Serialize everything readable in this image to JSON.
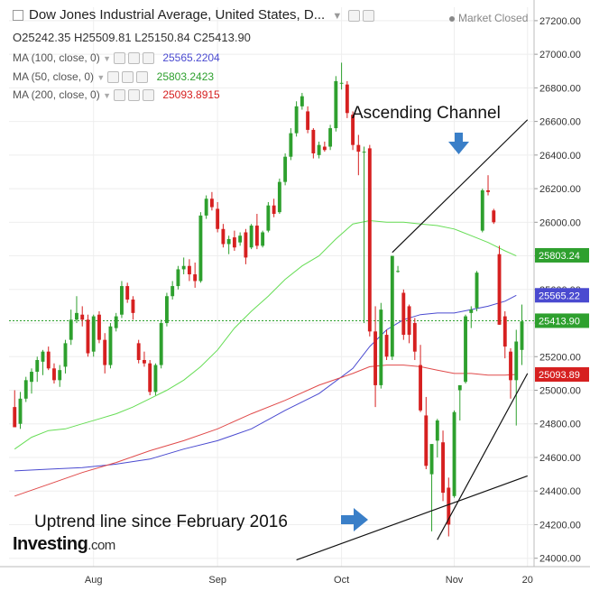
{
  "header": {
    "title": "Dow Jones Industrial Average, United States, D...",
    "status": "Market Closed",
    "open": "O25242.35",
    "high": "H25509.81",
    "low": "L25150.84",
    "close": "C25413.90",
    "ma100_label": "MA (100, close, 0)",
    "ma100_value": "25565.2204",
    "ma50_label": "MA (50, close, 0)",
    "ma50_value": "25803.2423",
    "ma200_label": "MA (200, close, 0)",
    "ma200_value": "25093.8915"
  },
  "annotations": {
    "channel": "Ascending Channel",
    "uptrend": "Uptrend line since February 2016"
  },
  "logo": {
    "main": "Investing",
    "suffix": ".com"
  },
  "colors": {
    "up": "#2ea02e",
    "down": "#d62020",
    "ma50": "#66dd55",
    "ma100": "#4a4ad0",
    "ma200": "#e04a4a",
    "arrow": "#3a7fc8"
  },
  "chart_data": {
    "type": "candlestick",
    "x_labels": [
      "Aug",
      "Sep",
      "Oct",
      "Nov",
      "20"
    ],
    "y_ticks": [
      "27200.00",
      "27000.00",
      "26800.00",
      "26600.00",
      "26400.00",
      "26200.00",
      "26000.00",
      "25800.00",
      "25600.00",
      "25400.00",
      "25200.00",
      "25000.00",
      "24800.00",
      "24600.00",
      "24400.00",
      "24200.00",
      "24000.00"
    ],
    "ylim": [
      23950,
      27280
    ],
    "price_labels": [
      {
        "value": 25803.24,
        "text": "25803.24",
        "color": "#2ea02e"
      },
      {
        "value": 25565.22,
        "text": "25565.22",
        "color": "#4a4ad0"
      },
      {
        "value": 25413.9,
        "text": "25413.90",
        "color": "#2ea02e"
      },
      {
        "value": 25093.89,
        "text": "25093.89",
        "color": "#d62020"
      }
    ],
    "candles": [
      {
        "o": 24900,
        "h": 25000,
        "l": 24780,
        "c": 24780
      },
      {
        "o": 24800,
        "h": 24990,
        "l": 24770,
        "c": 24950
      },
      {
        "o": 24950,
        "h": 25080,
        "l": 24930,
        "c": 25060
      },
      {
        "o": 25050,
        "h": 25130,
        "l": 24980,
        "c": 25110
      },
      {
        "o": 25110,
        "h": 25200,
        "l": 25050,
        "c": 25180
      },
      {
        "o": 25170,
        "h": 25240,
        "l": 25090,
        "c": 25230
      },
      {
        "o": 25230,
        "h": 25260,
        "l": 25120,
        "c": 25130
      },
      {
        "o": 25130,
        "h": 25160,
        "l": 25040,
        "c": 25060
      },
      {
        "o": 25060,
        "h": 25150,
        "l": 25020,
        "c": 25120
      },
      {
        "o": 25140,
        "h": 25300,
        "l": 25100,
        "c": 25280
      },
      {
        "o": 25300,
        "h": 25480,
        "l": 25270,
        "c": 25420
      },
      {
        "o": 25420,
        "h": 25560,
        "l": 25400,
        "c": 25460
      },
      {
        "o": 25450,
        "h": 25500,
        "l": 25380,
        "c": 25420
      },
      {
        "o": 25420,
        "h": 25450,
        "l": 25200,
        "c": 25220
      },
      {
        "o": 25230,
        "h": 25450,
        "l": 25200,
        "c": 25440
      },
      {
        "o": 25450,
        "h": 25470,
        "l": 25280,
        "c": 25300
      },
      {
        "o": 25300,
        "h": 25340,
        "l": 25100,
        "c": 25150
      },
      {
        "o": 25150,
        "h": 25400,
        "l": 25130,
        "c": 25380
      },
      {
        "o": 25370,
        "h": 25460,
        "l": 25350,
        "c": 25440
      },
      {
        "o": 25450,
        "h": 25650,
        "l": 25430,
        "c": 25620
      },
      {
        "o": 25620,
        "h": 25640,
        "l": 25520,
        "c": 25540
      },
      {
        "o": 25540,
        "h": 25560,
        "l": 25420,
        "c": 25460
      },
      {
        "o": 25280,
        "h": 25300,
        "l": 25160,
        "c": 25180
      },
      {
        "o": 25180,
        "h": 25230,
        "l": 25140,
        "c": 25160
      },
      {
        "o": 25160,
        "h": 25180,
        "l": 24970,
        "c": 24990
      },
      {
        "o": 24990,
        "h": 25160,
        "l": 24970,
        "c": 25150
      },
      {
        "o": 25150,
        "h": 25420,
        "l": 25130,
        "c": 25400
      },
      {
        "o": 25400,
        "h": 25580,
        "l": 25380,
        "c": 25560
      },
      {
        "o": 25560,
        "h": 25650,
        "l": 25540,
        "c": 25620
      },
      {
        "o": 25620,
        "h": 25740,
        "l": 25600,
        "c": 25720
      },
      {
        "o": 25720,
        "h": 25790,
        "l": 25690,
        "c": 25740
      },
      {
        "o": 25740,
        "h": 25780,
        "l": 25650,
        "c": 25690
      },
      {
        "o": 25690,
        "h": 25760,
        "l": 25610,
        "c": 25650
      },
      {
        "o": 25650,
        "h": 26060,
        "l": 25640,
        "c": 26040
      },
      {
        "o": 26040,
        "h": 26160,
        "l": 26020,
        "c": 26140
      },
      {
        "o": 26140,
        "h": 26180,
        "l": 26070,
        "c": 26090
      },
      {
        "o": 26080,
        "h": 26120,
        "l": 25940,
        "c": 25960
      },
      {
        "o": 25960,
        "h": 25990,
        "l": 25850,
        "c": 25870
      },
      {
        "o": 25870,
        "h": 25920,
        "l": 25810,
        "c": 25900
      },
      {
        "o": 25910,
        "h": 25950,
        "l": 25830,
        "c": 25850
      },
      {
        "o": 25880,
        "h": 25940,
        "l": 25860,
        "c": 25920
      },
      {
        "o": 25940,
        "h": 25960,
        "l": 25750,
        "c": 25790
      },
      {
        "o": 25850,
        "h": 25990,
        "l": 25840,
        "c": 25980
      },
      {
        "o": 25980,
        "h": 26050,
        "l": 25840,
        "c": 25860
      },
      {
        "o": 25860,
        "h": 25950,
        "l": 25850,
        "c": 25940
      },
      {
        "o": 25950,
        "h": 26120,
        "l": 25940,
        "c": 26100
      },
      {
        "o": 26100,
        "h": 26140,
        "l": 26030,
        "c": 26050
      },
      {
        "o": 26060,
        "h": 26260,
        "l": 26050,
        "c": 26240
      },
      {
        "o": 26240,
        "h": 26410,
        "l": 26220,
        "c": 26390
      },
      {
        "o": 26390,
        "h": 26560,
        "l": 26370,
        "c": 26530
      },
      {
        "o": 26530,
        "h": 26720,
        "l": 26510,
        "c": 26690
      },
      {
        "o": 26690,
        "h": 26770,
        "l": 26670,
        "c": 26750
      },
      {
        "o": 26660,
        "h": 26690,
        "l": 26530,
        "c": 26550
      },
      {
        "o": 26550,
        "h": 26560,
        "l": 26380,
        "c": 26410
      },
      {
        "o": 26400,
        "h": 26480,
        "l": 26380,
        "c": 26460
      },
      {
        "o": 26450,
        "h": 26480,
        "l": 26420,
        "c": 26430
      },
      {
        "o": 26450,
        "h": 26580,
        "l": 26430,
        "c": 26560
      },
      {
        "o": 26560,
        "h": 26870,
        "l": 26540,
        "c": 26840
      },
      {
        "o": 26830,
        "h": 26950,
        "l": 26790,
        "c": 26830
      },
      {
        "o": 26820,
        "h": 26840,
        "l": 26620,
        "c": 26650
      },
      {
        "o": 26640,
        "h": 26660,
        "l": 26430,
        "c": 26460
      },
      {
        "o": 26460,
        "h": 26520,
        "l": 26280,
        "c": 26420
      },
      {
        "o": 26420,
        "h": 26450,
        "l": 25400,
        "c": 26420
      },
      {
        "o": 26440,
        "h": 26460,
        "l": 25320,
        "c": 25350
      },
      {
        "o": 25350,
        "h": 25500,
        "l": 24900,
        "c": 25030
      },
      {
        "o": 25030,
        "h": 25520,
        "l": 25010,
        "c": 25480
      },
      {
        "o": 25330,
        "h": 25360,
        "l": 25180,
        "c": 25200
      },
      {
        "o": 25200,
        "h": 25800,
        "l": 25180,
        "c": 25800
      },
      {
        "o": 25710,
        "h": 25740,
        "l": 25700,
        "c": 25710
      },
      {
        "o": 25580,
        "h": 25600,
        "l": 25300,
        "c": 25330
      },
      {
        "o": 25500,
        "h": 25510,
        "l": 25280,
        "c": 25330
      },
      {
        "o": 25400,
        "h": 25430,
        "l": 25180,
        "c": 25230
      },
      {
        "o": 25150,
        "h": 25270,
        "l": 24870,
        "c": 24880
      },
      {
        "o": 24850,
        "h": 24960,
        "l": 24530,
        "c": 24550
      },
      {
        "o": 24500,
        "h": 24660,
        "l": 24160,
        "c": 24680
      },
      {
        "o": 24700,
        "h": 24830,
        "l": 24600,
        "c": 24820
      },
      {
        "o": 24690,
        "h": 24760,
        "l": 24340,
        "c": 24390
      },
      {
        "o": 24420,
        "h": 24480,
        "l": 24130,
        "c": 24200
      },
      {
        "o": 24370,
        "h": 24880,
        "l": 24360,
        "c": 24870
      },
      {
        "o": 25000,
        "h": 25030,
        "l": 24820,
        "c": 25030
      },
      {
        "o": 25050,
        "h": 25450,
        "l": 25040,
        "c": 25440
      },
      {
        "o": 25460,
        "h": 25500,
        "l": 25370,
        "c": 25480
      },
      {
        "o": 25490,
        "h": 25710,
        "l": 25470,
        "c": 25700
      },
      {
        "o": 25950,
        "h": 26200,
        "l": 25940,
        "c": 26190
      },
      {
        "o": 26190,
        "h": 26280,
        "l": 26160,
        "c": 26180
      },
      {
        "o": 26070,
        "h": 26080,
        "l": 25990,
        "c": 26000
      },
      {
        "o": 25810,
        "h": 25860,
        "l": 25390,
        "c": 25390
      },
      {
        "o": 25440,
        "h": 25470,
        "l": 25190,
        "c": 25260
      },
      {
        "o": 25230,
        "h": 25250,
        "l": 24950,
        "c": 25060
      },
      {
        "o": 25060,
        "h": 25360,
        "l": 24790,
        "c": 25290
      },
      {
        "o": 25240,
        "h": 25510,
        "l": 25150,
        "c": 25410
      }
    ],
    "ma50": [
      [
        0,
        24650
      ],
      [
        3,
        24720
      ],
      [
        6,
        24760
      ],
      [
        9,
        24770
      ],
      [
        12,
        24800
      ],
      [
        15,
        24830
      ],
      [
        18,
        24860
      ],
      [
        21,
        24900
      ],
      [
        24,
        24950
      ],
      [
        27,
        25000
      ],
      [
        30,
        25060
      ],
      [
        33,
        25140
      ],
      [
        36,
        25240
      ],
      [
        39,
        25370
      ],
      [
        42,
        25470
      ],
      [
        45,
        25560
      ],
      [
        48,
        25660
      ],
      [
        51,
        25740
      ],
      [
        54,
        25800
      ],
      [
        57,
        25900
      ],
      [
        60,
        25990
      ],
      [
        63,
        26010
      ],
      [
        66,
        26000
      ],
      [
        69,
        26000
      ],
      [
        72,
        25990
      ],
      [
        75,
        25980
      ],
      [
        78,
        25960
      ],
      [
        81,
        25920
      ],
      [
        84,
        25880
      ],
      [
        87,
        25830
      ],
      [
        89,
        25800
      ]
    ],
    "ma100": [
      [
        0,
        24520
      ],
      [
        6,
        24530
      ],
      [
        12,
        24540
      ],
      [
        18,
        24560
      ],
      [
        24,
        24590
      ],
      [
        30,
        24650
      ],
      [
        36,
        24700
      ],
      [
        42,
        24770
      ],
      [
        48,
        24880
      ],
      [
        54,
        24980
      ],
      [
        60,
        25130
      ],
      [
        63,
        25260
      ],
      [
        66,
        25360
      ],
      [
        69,
        25420
      ],
      [
        72,
        25450
      ],
      [
        75,
        25460
      ],
      [
        78,
        25460
      ],
      [
        81,
        25480
      ],
      [
        84,
        25500
      ],
      [
        87,
        25530
      ],
      [
        89,
        25565
      ]
    ],
    "ma200": [
      [
        0,
        24370
      ],
      [
        6,
        24440
      ],
      [
        12,
        24510
      ],
      [
        18,
        24570
      ],
      [
        24,
        24640
      ],
      [
        30,
        24700
      ],
      [
        36,
        24770
      ],
      [
        42,
        24860
      ],
      [
        48,
        24940
      ],
      [
        54,
        25030
      ],
      [
        60,
        25100
      ],
      [
        63,
        25140
      ],
      [
        66,
        25150
      ],
      [
        69,
        25150
      ],
      [
        72,
        25140
      ],
      [
        75,
        25120
      ],
      [
        78,
        25100
      ],
      [
        81,
        25100
      ],
      [
        84,
        25090
      ],
      [
        87,
        25090
      ],
      [
        89,
        25094
      ]
    ],
    "channel_upper": [
      [
        67,
        25820
      ],
      [
        91,
        26610
      ]
    ],
    "channel_lower": [
      [
        75,
        24110
      ],
      [
        91,
        25100
      ]
    ],
    "uptrend": [
      [
        50,
        23990
      ],
      [
        91,
        24490
      ]
    ],
    "x_label_index": [
      {
        "label": "Aug",
        "i": 14
      },
      {
        "label": "Sep",
        "i": 36
      },
      {
        "label": "Oct",
        "i": 58
      },
      {
        "label": "Nov",
        "i": 78
      },
      {
        "label": "20",
        "i": 91
      }
    ]
  }
}
